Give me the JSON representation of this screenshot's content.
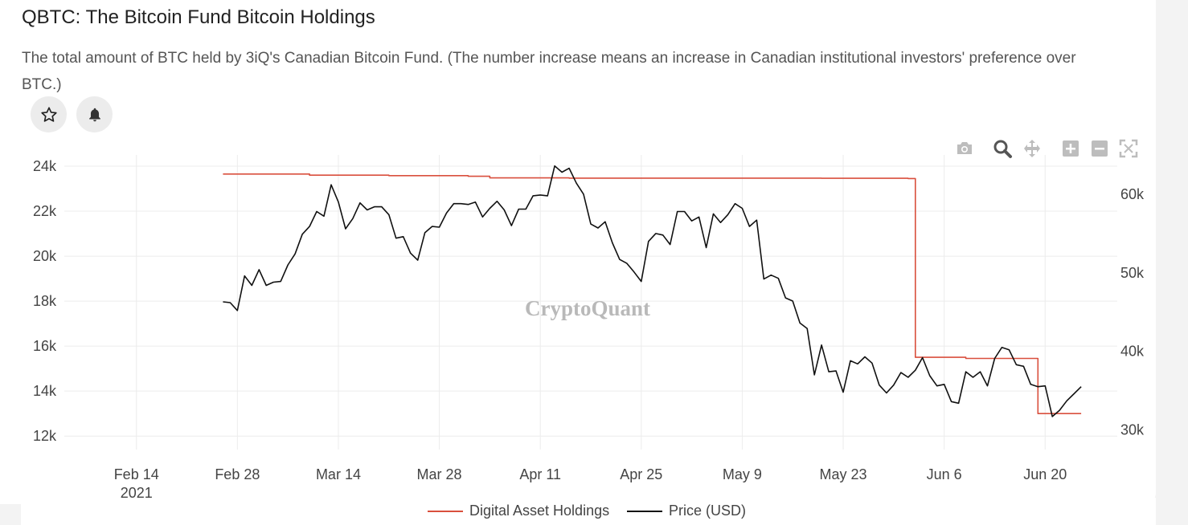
{
  "header": {
    "title": "QBTC: The Bitcoin Fund Bitcoin Holdings",
    "description": "The total amount of BTC held by 3iQ's Canadian Bitcoin Fund. (The number increase means an increase in Canadian institutional investors' preference over BTC.)"
  },
  "actions": {
    "favorite_icon": "star-icon",
    "alert_icon": "bell-icon"
  },
  "toolbar": [
    "camera-icon",
    "zoom-icon",
    "pan-icon",
    "zoom-in-icon",
    "zoom-out-icon",
    "autoscale-icon"
  ],
  "watermark": "CryptoQuant",
  "colors": {
    "holdings": "#d94f3d",
    "price": "#111111",
    "grid": "#ececec"
  },
  "chart_data": {
    "type": "line",
    "title": "QBTC: The Bitcoin Fund Bitcoin Holdings",
    "x_axis": {
      "range": [
        "2021-02-04",
        "2021-06-30"
      ],
      "ticks": [
        {
          "date": "2021-02-14",
          "label": "Feb 14",
          "sub": "2021"
        },
        {
          "date": "2021-02-28",
          "label": "Feb 28"
        },
        {
          "date": "2021-03-14",
          "label": "Mar 14"
        },
        {
          "date": "2021-03-28",
          "label": "Mar 28"
        },
        {
          "date": "2021-04-11",
          "label": "Apr 11"
        },
        {
          "date": "2021-04-25",
          "label": "Apr 25"
        },
        {
          "date": "2021-05-09",
          "label": "May 9"
        },
        {
          "date": "2021-05-23",
          "label": "May 23"
        },
        {
          "date": "2021-06-06",
          "label": "Jun 6"
        },
        {
          "date": "2021-06-20",
          "label": "Jun 20"
        }
      ]
    },
    "y_left": {
      "range": [
        11400,
        24500
      ],
      "ticks": [
        12000,
        14000,
        16000,
        18000,
        20000,
        22000,
        24000
      ],
      "tick_labels": [
        "12k",
        "14k",
        "16k",
        "18k",
        "20k",
        "22k",
        "24k"
      ]
    },
    "y_right": {
      "range": [
        27500,
        65000
      ],
      "ticks": [
        30000,
        40000,
        50000,
        60000
      ],
      "tick_labels": [
        "30k",
        "40k",
        "50k",
        "60k"
      ]
    },
    "legend_position": "bottom-center",
    "series": [
      {
        "name": "Digital Asset Holdings",
        "axis": "left",
        "color": "#d94f3d",
        "shape": "step",
        "x": [
          "2021-02-26",
          "2021-03-07",
          "2021-03-10",
          "2021-03-21",
          "2021-04-01",
          "2021-04-04",
          "2021-04-15",
          "2021-05-01",
          "2021-05-20",
          "2021-06-01",
          "2021-06-02",
          "2021-06-05",
          "2021-06-09",
          "2021-06-18",
          "2021-06-19",
          "2021-06-25"
        ],
        "values": [
          23650,
          23650,
          23600,
          23580,
          23550,
          23480,
          23470,
          23470,
          23460,
          23450,
          15500,
          15500,
          15450,
          15450,
          13000,
          13000
        ]
      },
      {
        "name": "Price (USD)",
        "axis": "right",
        "color": "#111111",
        "x": [
          "2021-02-26",
          "2021-02-27",
          "2021-02-28",
          "2021-03-01",
          "2021-03-02",
          "2021-03-03",
          "2021-03-04",
          "2021-03-05",
          "2021-03-06",
          "2021-03-07",
          "2021-03-08",
          "2021-03-09",
          "2021-03-10",
          "2021-03-11",
          "2021-03-12",
          "2021-03-13",
          "2021-03-14",
          "2021-03-15",
          "2021-03-16",
          "2021-03-17",
          "2021-03-18",
          "2021-03-19",
          "2021-03-20",
          "2021-03-21",
          "2021-03-22",
          "2021-03-23",
          "2021-03-24",
          "2021-03-25",
          "2021-03-26",
          "2021-03-27",
          "2021-03-28",
          "2021-03-29",
          "2021-03-30",
          "2021-03-31",
          "2021-04-01",
          "2021-04-02",
          "2021-04-03",
          "2021-04-04",
          "2021-04-05",
          "2021-04-06",
          "2021-04-07",
          "2021-04-08",
          "2021-04-09",
          "2021-04-10",
          "2021-04-11",
          "2021-04-12",
          "2021-04-13",
          "2021-04-14",
          "2021-04-15",
          "2021-04-16",
          "2021-04-17",
          "2021-04-18",
          "2021-04-19",
          "2021-04-20",
          "2021-04-21",
          "2021-04-22",
          "2021-04-23",
          "2021-04-24",
          "2021-04-25",
          "2021-04-26",
          "2021-04-27",
          "2021-04-28",
          "2021-04-29",
          "2021-04-30",
          "2021-05-01",
          "2021-05-02",
          "2021-05-03",
          "2021-05-04",
          "2021-05-05",
          "2021-05-06",
          "2021-05-07",
          "2021-05-08",
          "2021-05-09",
          "2021-05-10",
          "2021-05-11",
          "2021-05-12",
          "2021-05-13",
          "2021-05-14",
          "2021-05-15",
          "2021-05-16",
          "2021-05-17",
          "2021-05-18",
          "2021-05-19",
          "2021-05-20",
          "2021-05-21",
          "2021-05-22",
          "2021-05-23",
          "2021-05-24",
          "2021-05-25",
          "2021-05-26",
          "2021-05-27",
          "2021-05-28",
          "2021-05-29",
          "2021-05-30",
          "2021-05-31",
          "2021-06-01",
          "2021-06-02",
          "2021-06-03",
          "2021-06-04",
          "2021-06-05",
          "2021-06-06",
          "2021-06-07",
          "2021-06-08",
          "2021-06-09",
          "2021-06-10",
          "2021-06-11",
          "2021-06-12",
          "2021-06-13",
          "2021-06-14",
          "2021-06-15",
          "2021-06-16",
          "2021-06-17",
          "2021-06-18",
          "2021-06-19",
          "2021-06-20",
          "2021-06-21",
          "2021-06-22",
          "2021-06-23",
          "2021-06-24",
          "2021-06-25"
        ],
        "values": [
          46300,
          46200,
          45200,
          49600,
          48400,
          50400,
          48400,
          48800,
          48900,
          51000,
          52400,
          54900,
          55900,
          57800,
          57200,
          61200,
          59000,
          55600,
          56900,
          58900,
          58000,
          58400,
          58400,
          57400,
          54400,
          54600,
          52500,
          51600,
          55100,
          55900,
          55800,
          57600,
          58800,
          58800,
          58700,
          59000,
          57100,
          58200,
          59100,
          58000,
          56000,
          58100,
          58100,
          59800,
          59900,
          59800,
          63600,
          62800,
          63300,
          61400,
          60000,
          56200,
          55700,
          56500,
          53800,
          51700,
          51200,
          50100,
          48900,
          54000,
          55000,
          54800,
          53600,
          57800,
          57800,
          56600,
          57100,
          53200,
          57500,
          56400,
          57400,
          58800,
          58200,
          55900,
          56700,
          49200,
          49700,
          49300,
          46800,
          46400,
          43600,
          42900,
          37000,
          40800,
          37400,
          37500,
          34800,
          38800,
          38400,
          39300,
          38500,
          35700,
          34700,
          35700,
          37300,
          36700,
          37600,
          39200,
          36900,
          35600,
          35800,
          33600,
          33400,
          37400,
          36700,
          37400,
          35600,
          39100,
          40500,
          40200,
          38300,
          38100,
          35800,
          35500,
          35600,
          31700,
          32500,
          33700,
          34600,
          35500
        ]
      }
    ]
  },
  "legend": [
    {
      "label": "Digital Asset Holdings",
      "color": "#d94f3d"
    },
    {
      "label": "Price (USD)",
      "color": "#111111"
    }
  ]
}
